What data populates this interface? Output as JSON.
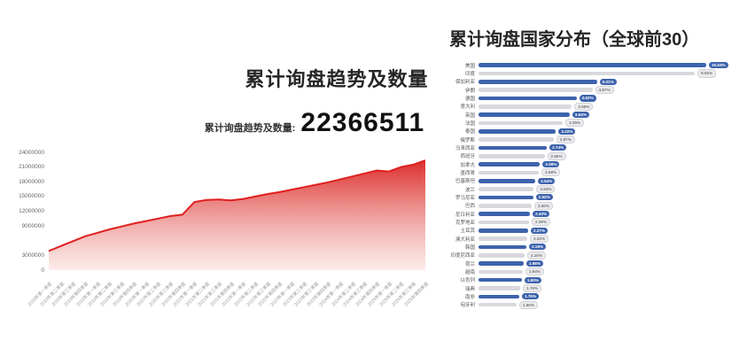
{
  "page": {
    "background": "#ffffff"
  },
  "left_chart": {
    "title": "累计询盘趋势及数量",
    "stat_label": "累计询盘趋势及数量:",
    "stat_value": "22366511"
  },
  "right_chart": {
    "title": "累计询盘国家分布（全球前30）"
  },
  "chart_data": [
    {
      "type": "area",
      "title": "累计询盘趋势及数量",
      "x": [
        "2018年第一季度",
        "2018年第二季度",
        "2018年第三季度",
        "2018年第四季度",
        "2019年第一季度",
        "2019年第二季度",
        "2019年第三季度",
        "2019年第四季度",
        "2020年第一季度",
        "2020年第二季度",
        "2020年第三季度",
        "2020年第四季度",
        "2021年第一季度",
        "2021年第二季度",
        "2021年第三季度",
        "2021年第四季度",
        "2022年第一季度",
        "2022年第二季度",
        "2022年第三季度",
        "2022年第四季度",
        "2023年第一季度",
        "2023年第二季度",
        "2023年第三季度",
        "2023年第四季度",
        "2024年第一季度",
        "2024年第二季度",
        "2024年第三季度",
        "2024年第四季度",
        "2025年第一季度",
        "2025年第二季度",
        "2025年第三季度",
        "2025年第四季度"
      ],
      "values": [
        3900000,
        4900000,
        5900000,
        6900000,
        7600000,
        8300000,
        8900000,
        9500000,
        10000000,
        10500000,
        11000000,
        11300000,
        13900000,
        14300000,
        14400000,
        14200000,
        14500000,
        15000000,
        15500000,
        15900000,
        16400000,
        16900000,
        17400000,
        17900000,
        18500000,
        19100000,
        19700000,
        20300000,
        20100000,
        21000000,
        21500000,
        22366511
      ],
      "ylim": [
        0,
        24000000
      ],
      "y_ticks_visible": [
        0,
        3000000,
        9000000,
        12000000,
        15000000,
        18000000,
        21000000,
        24000000
      ],
      "line_color": "#e01f1f",
      "fill_gradient": [
        "rgba(218,28,28,0.92)",
        "rgba(222,60,55,0.45)",
        "rgba(228,95,85,0.12)"
      ],
      "grid": false,
      "legend": "none"
    },
    {
      "type": "bar",
      "orientation": "horizontal",
      "title": "累计询盘国家分布（全球前30）",
      "categories": [
        "美国",
        "印度",
        "保加利亚",
        "伊朗",
        "德国",
        "意大利",
        "英国",
        "法国",
        "泰国",
        "俄罗斯",
        "马来西亚",
        "西班牙",
        "加拿大",
        "墨西哥",
        "巴基斯坦",
        "波兰",
        "罗马尼亚",
        "巴西",
        "尼日利亚",
        "克罗地亚",
        "土耳其",
        "澳大利亚",
        "韩国",
        "印度尼西亚",
        "荷兰",
        "越南",
        "以色列",
        "瑞典",
        "南非",
        "匈牙利"
      ],
      "values": [
        15.63,
        8.93,
        5.01,
        4.87,
        3.62,
        3.55,
        3.54,
        3.35,
        3.22,
        2.87,
        2.74,
        2.65,
        2.59,
        2.58,
        2.54,
        2.53,
        2.52,
        2.5,
        2.4,
        2.39,
        2.27,
        2.22,
        2.18,
        2.1,
        1.98,
        1.94,
        1.8,
        1.79,
        1.76,
        1.66
      ],
      "value_labels": [
        "15.63%",
        "8.93%",
        "5.01%",
        "4.87%",
        "3.62%",
        "3.55%",
        "3.54%",
        "3.35%",
        "3.22%",
        "2.87%",
        "2.74%",
        "2.65%",
        "2.59%",
        "2.58%",
        "2.54%",
        "2.53%",
        "2.52%",
        "2.50%",
        "2.40%",
        "2.39%",
        "2.27%",
        "2.22%",
        "2.18%",
        "2.10%",
        "1.98%",
        "1.94%",
        "1.80%",
        "1.79%",
        "1.76%",
        "1.66%"
      ],
      "bar_visual_width_pct": [
        100,
        95,
        52,
        50,
        43,
        41,
        40,
        37,
        34,
        33,
        30,
        29,
        27,
        26.5,
        25,
        24.3,
        24,
        23.3,
        22.6,
        22.2,
        21.8,
        21.4,
        21,
        20.2,
        19.8,
        19.4,
        19,
        18.3,
        17.9,
        16.7
      ],
      "bar_color_odd_rows": "#3d63ac",
      "bar_color_even_rows": "#d8d8dd",
      "value_pill_blue": "#3d63ac",
      "value_pill_gray": "#ebebee"
    }
  ]
}
